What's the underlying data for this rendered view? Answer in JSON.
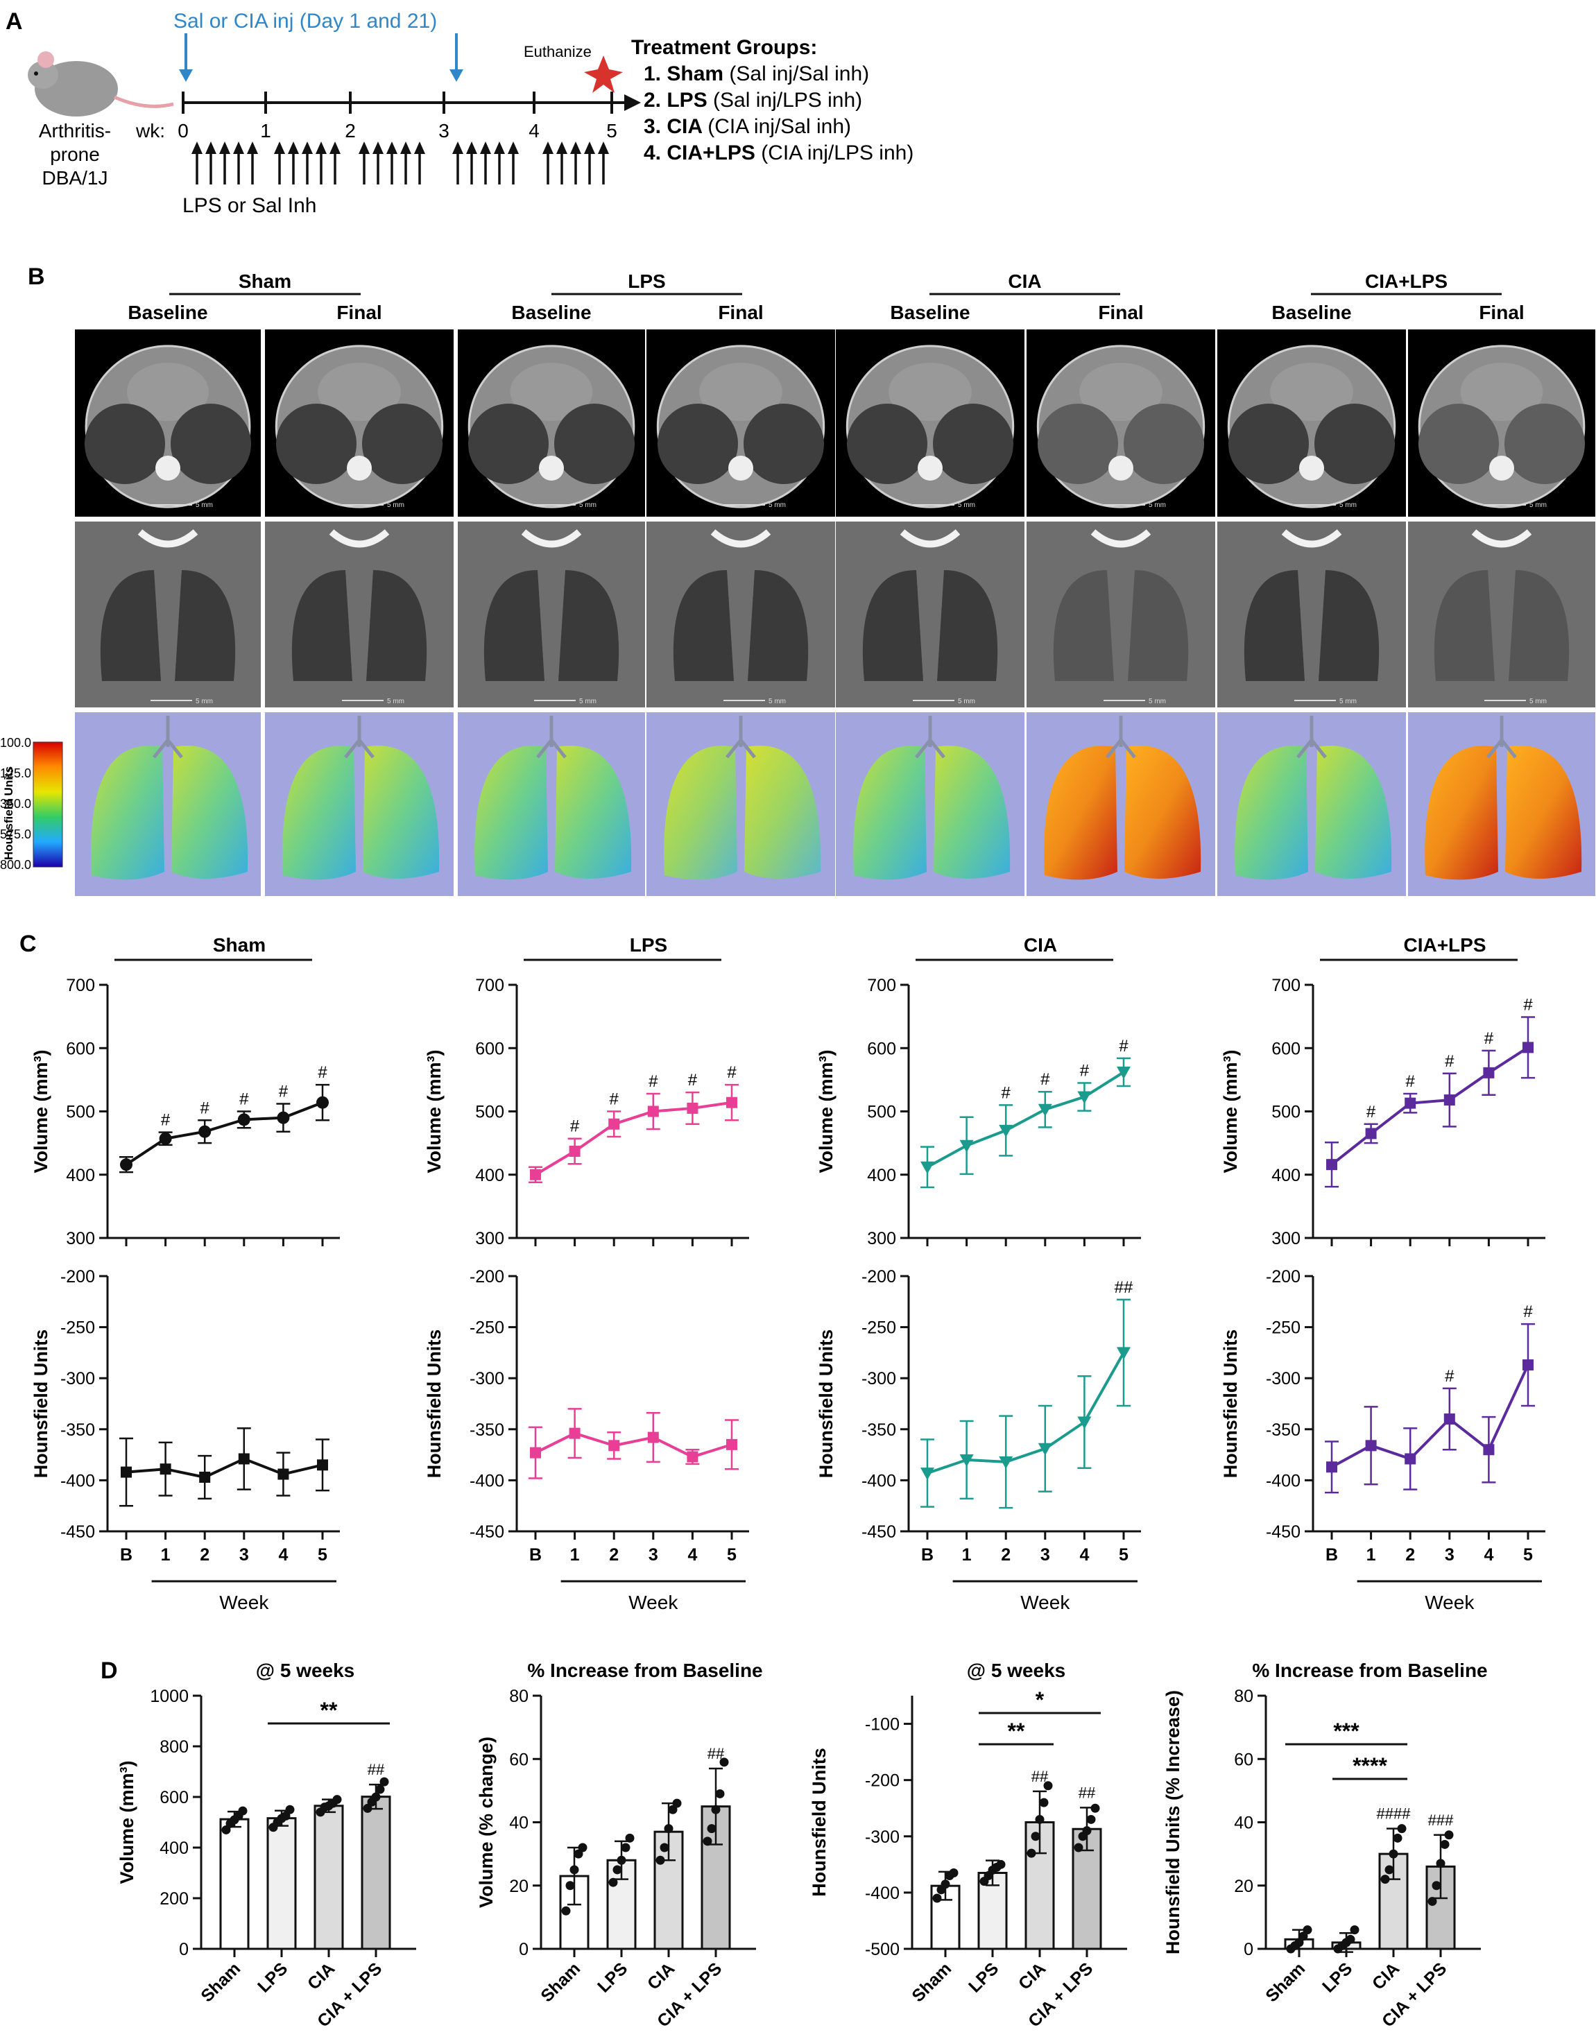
{
  "panelA": {
    "label": "A",
    "inj_label": "Sal or CIA inj (Day 1 and 21)",
    "euthanize_label": "Euthanize",
    "mouse_label": [
      "Arthritis-",
      "prone",
      "DBA/1J"
    ],
    "wk_label": "wk:",
    "weeks": [
      "0",
      "1",
      "2",
      "3",
      "4",
      "5"
    ],
    "inh_label": "LPS or Sal Inh",
    "groups_title": "Treatment Groups:",
    "groups": [
      {
        "num": "1.",
        "name": "Sham",
        "desc": "(Sal inj/Sal inh)"
      },
      {
        "num": "2.",
        "name": "LPS",
        "desc": "(Sal inj/LPS inh)"
      },
      {
        "num": "3.",
        "name": "CIA",
        "desc": "(CIA inj/Sal inh)"
      },
      {
        "num": "4.",
        "name": "CIA+LPS",
        "desc": "(CIA inj/LPS inh)"
      }
    ],
    "colors": {
      "injection": "#2f86c9",
      "euthanize": "#d8322c"
    }
  },
  "panelB": {
    "label": "B",
    "groups": [
      "Sham",
      "LPS",
      "CIA",
      "CIA+LPS"
    ],
    "timepoints": [
      "Baseline",
      "Final"
    ],
    "scale_label": "5 mm",
    "colorbar": {
      "title": "Hounsfield Units",
      "ticks": [
        "100.0",
        "-125.0",
        "-350.0",
        "-575.0",
        "-800.0"
      ]
    }
  },
  "panelC": {
    "label": "C"
  },
  "panelD": {
    "label": "D"
  },
  "chart_data": [
    {
      "id": "C-vol-Sham",
      "type": "line",
      "panel": "C",
      "group": "Sham",
      "color": "#111111",
      "marker": "circle",
      "xlabel": "",
      "ylabel": "Volume (mm³)",
      "ylim": [
        300,
        700
      ],
      "yticks": [
        300,
        400,
        500,
        600,
        700
      ],
      "x": [
        "B",
        "1",
        "2",
        "3",
        "4",
        "5"
      ],
      "values": [
        416,
        457,
        468,
        487,
        490,
        514
      ],
      "errors": [
        12,
        10,
        18,
        13,
        22,
        28
      ],
      "annotations": [
        "",
        "#",
        "#",
        "#",
        "#",
        "#"
      ]
    },
    {
      "id": "C-vol-LPS",
      "type": "line",
      "panel": "C",
      "group": "LPS",
      "color": "#e83e96",
      "marker": "square",
      "xlabel": "",
      "ylabel": "Volume (mm³)",
      "ylim": [
        300,
        700
      ],
      "yticks": [
        300,
        400,
        500,
        600,
        700
      ],
      "x": [
        "B",
        "1",
        "2",
        "3",
        "4",
        "5"
      ],
      "values": [
        400,
        437,
        480,
        500,
        505,
        514
      ],
      "errors": [
        12,
        20,
        20,
        28,
        25,
        28
      ],
      "annotations": [
        "",
        "#",
        "#",
        "#",
        "#",
        "#"
      ]
    },
    {
      "id": "C-vol-CIA",
      "type": "line",
      "panel": "C",
      "group": "CIA",
      "color": "#1a9b8e",
      "marker": "triangle-down",
      "xlabel": "",
      "ylabel": "Volume (mm³)",
      "ylim": [
        300,
        700
      ],
      "yticks": [
        300,
        400,
        500,
        600,
        700
      ],
      "x": [
        "B",
        "1",
        "2",
        "3",
        "4",
        "5"
      ],
      "values": [
        412,
        446,
        470,
        503,
        523,
        562
      ],
      "errors": [
        32,
        45,
        40,
        28,
        22,
        22
      ],
      "annotations": [
        "",
        "",
        "#",
        "#",
        "#",
        "#"
      ]
    },
    {
      "id": "C-vol-CIALPS",
      "type": "line",
      "panel": "C",
      "group": "CIA+LPS",
      "color": "#5b2a9c",
      "marker": "square",
      "xlabel": "",
      "ylabel": "Volume (mm³)",
      "ylim": [
        300,
        700
      ],
      "yticks": [
        300,
        400,
        500,
        600,
        700
      ],
      "x": [
        "B",
        "1",
        "2",
        "3",
        "4",
        "5"
      ],
      "values": [
        416,
        465,
        513,
        518,
        561,
        601
      ],
      "errors": [
        35,
        15,
        15,
        42,
        35,
        48
      ],
      "annotations": [
        "",
        "#",
        "#",
        "#",
        "#",
        "#"
      ]
    },
    {
      "id": "C-hu-Sham",
      "type": "line",
      "panel": "C",
      "group": "Sham",
      "color": "#111111",
      "marker": "square",
      "xlabel": "Week",
      "ylabel": "Hounsfield Units",
      "ylim": [
        -450,
        -200
      ],
      "yticks": [
        -450,
        -400,
        -350,
        -300,
        -250,
        -200
      ],
      "x": [
        "B",
        "1",
        "2",
        "3",
        "4",
        "5"
      ],
      "values": [
        -392,
        -389,
        -397,
        -379,
        -394,
        -385
      ],
      "errors": [
        33,
        26,
        21,
        30,
        21,
        25
      ],
      "annotations": [
        "",
        "",
        "",
        "",
        "",
        ""
      ]
    },
    {
      "id": "C-hu-LPS",
      "type": "line",
      "panel": "C",
      "group": "LPS",
      "color": "#e83e96",
      "marker": "square",
      "xlabel": "Week",
      "ylabel": "Hounsfield Units",
      "ylim": [
        -450,
        -200
      ],
      "yticks": [
        -450,
        -400,
        -350,
        -300,
        -250,
        -200
      ],
      "x": [
        "B",
        "1",
        "2",
        "3",
        "4",
        "5"
      ],
      "values": [
        -373,
        -354,
        -366,
        -358,
        -377,
        -365
      ],
      "errors": [
        25,
        24,
        13,
        24,
        7,
        24
      ],
      "annotations": [
        "",
        "",
        "",
        "",
        "",
        ""
      ]
    },
    {
      "id": "C-hu-CIA",
      "type": "line",
      "panel": "C",
      "group": "CIA",
      "color": "#1a9b8e",
      "marker": "triangle-down",
      "xlabel": "Week",
      "ylabel": "Hounsfield Units",
      "ylim": [
        -450,
        -200
      ],
      "yticks": [
        -450,
        -400,
        -350,
        -300,
        -250,
        -200
      ],
      "x": [
        "B",
        "1",
        "2",
        "3",
        "4",
        "5"
      ],
      "values": [
        -393,
        -380,
        -382,
        -369,
        -343,
        -275
      ],
      "errors": [
        33,
        38,
        45,
        42,
        45,
        52
      ],
      "annotations": [
        "",
        "",
        "",
        "",
        "",
        "##"
      ]
    },
    {
      "id": "C-hu-CIALPS",
      "type": "line",
      "panel": "C",
      "group": "CIA+LPS",
      "color": "#5b2a9c",
      "marker": "square",
      "xlabel": "Week",
      "ylabel": "Hounsfield Units",
      "ylim": [
        -450,
        -200
      ],
      "yticks": [
        -450,
        -400,
        -350,
        -300,
        -250,
        -200
      ],
      "x": [
        "B",
        "1",
        "2",
        "3",
        "4",
        "5"
      ],
      "values": [
        -387,
        -366,
        -379,
        -340,
        -370,
        -287
      ],
      "errors": [
        25,
        38,
        30,
        30,
        32,
        40
      ],
      "annotations": [
        "",
        "",
        "",
        "#",
        "",
        "#"
      ]
    },
    {
      "id": "D-vol5",
      "type": "bar",
      "panel": "D",
      "title": "@ 5 weeks",
      "ylabel": "Volume (mm³)",
      "ylim": [
        0,
        1000
      ],
      "yticks": [
        0,
        200,
        400,
        600,
        800,
        1000
      ],
      "categories": [
        "Sham",
        "LPS",
        "CIA",
        "CIA + LPS"
      ],
      "values": [
        512,
        516,
        565,
        601
      ],
      "errors": [
        30,
        30,
        25,
        48
      ],
      "points": [
        [
          470,
          495,
          510,
          525,
          545
        ],
        [
          480,
          500,
          515,
          525,
          550
        ],
        [
          540,
          560,
          565,
          575,
          590
        ],
        [
          555,
          580,
          600,
          630,
          660
        ]
      ],
      "fills": [
        "#ffffff",
        "#f0f0f0",
        "#dcdcdc",
        "#c4c4c4"
      ],
      "annotations": [
        "",
        "",
        "",
        "##"
      ],
      "comparisons": [
        {
          "from": "LPS",
          "to": "CIA + LPS",
          "label": "**"
        }
      ]
    },
    {
      "id": "D-volpct",
      "type": "bar",
      "panel": "D",
      "title": "% Increase from Baseline",
      "ylabel": "Volume (% change)",
      "ylim": [
        0,
        80
      ],
      "yticks": [
        0,
        20,
        40,
        60,
        80
      ],
      "categories": [
        "Sham",
        "LPS",
        "CIA",
        "CIA + LPS"
      ],
      "values": [
        23,
        28,
        37,
        45
      ],
      "errors": [
        9,
        6,
        9,
        12
      ],
      "points": [
        [
          12,
          20,
          25,
          30,
          32
        ],
        [
          21,
          25,
          28,
          32,
          35
        ],
        [
          28,
          32,
          38,
          44,
          46
        ],
        [
          34,
          38,
          44,
          49,
          59
        ]
      ],
      "fills": [
        "#ffffff",
        "#f0f0f0",
        "#dcdcdc",
        "#c4c4c4"
      ],
      "annotations": [
        "",
        "",
        "",
        "##"
      ],
      "comparisons": []
    },
    {
      "id": "D-hu5",
      "type": "bar",
      "panel": "D",
      "title": "@ 5 weeks",
      "ylabel": "Hounsfield Units",
      "ylim": [
        -500,
        -50
      ],
      "yticks": [
        -500,
        -400,
        -300,
        -200,
        -100
      ],
      "categories": [
        "Sham",
        "LPS",
        "CIA",
        "CIA + LPS"
      ],
      "values": [
        -388,
        -365,
        -275,
        -287
      ],
      "errors": [
        25,
        22,
        55,
        38
      ],
      "points": [
        [
          -410,
          -395,
          -385,
          -370,
          -365
        ],
        [
          -380,
          -370,
          -360,
          -355,
          -350
        ],
        [
          -330,
          -300,
          -270,
          -240,
          -210
        ],
        [
          -320,
          -300,
          -290,
          -270,
          -250
        ]
      ],
      "fills": [
        "#ffffff",
        "#f0f0f0",
        "#dcdcdc",
        "#c4c4c4"
      ],
      "annotations": [
        "",
        "",
        "##",
        "##"
      ],
      "comparisons": [
        {
          "from": "LPS",
          "to": "CIA",
          "label": "**"
        },
        {
          "from": "LPS",
          "to": "CIA + LPS",
          "label": "*"
        }
      ]
    },
    {
      "id": "D-hupct",
      "type": "bar",
      "panel": "D",
      "title": "% Increase from Baseline",
      "ylabel": "Hounsfield Units (% Increase)",
      "ylim": [
        0,
        80
      ],
      "yticks": [
        0,
        20,
        40,
        60,
        80
      ],
      "categories": [
        "Sham",
        "LPS",
        "CIA",
        "CIA + LPS"
      ],
      "values": [
        3,
        2,
        30,
        26
      ],
      "errors": [
        3,
        3,
        8,
        10
      ],
      "points": [
        [
          0,
          1,
          2,
          4,
          6
        ],
        [
          0,
          1,
          2,
          3,
          6
        ],
        [
          22,
          25,
          30,
          35,
          38
        ],
        [
          15,
          20,
          27,
          33,
          36
        ]
      ],
      "fills": [
        "#ffffff",
        "#f0f0f0",
        "#dcdcdc",
        "#c4c4c4"
      ],
      "annotations": [
        "",
        "",
        "####",
        "###"
      ],
      "comparisons": [
        {
          "from": "LPS",
          "to": "CIA",
          "label": "****"
        },
        {
          "from": "Sham",
          "to": "CIA",
          "label": "***"
        }
      ]
    }
  ]
}
